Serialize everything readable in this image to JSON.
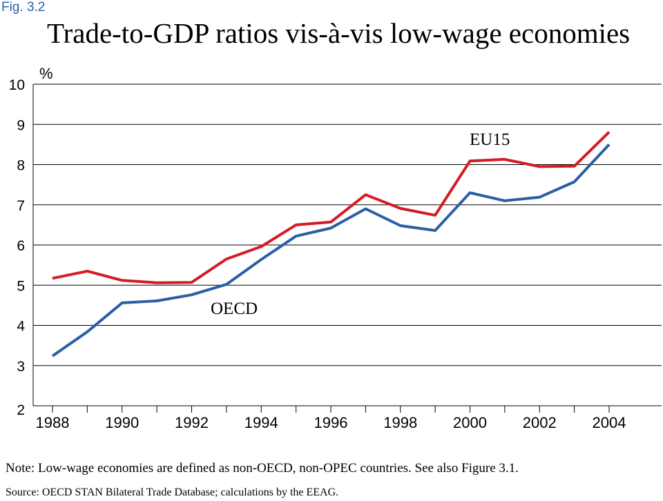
{
  "figure_label": "Fig. 3.2",
  "title": "Trade-to-GDP ratios vis-à-vis low-wage economies",
  "note": "Note: Low-wage economies are defined as non-OECD, non-OPEC countries. See also Figure 3.1.",
  "source": "Source: OECD STAN Bilateral Trade Database; calculations by the EEAG.",
  "colors": {
    "EU15": "#d51b23",
    "OECD": "#2c5ea5",
    "grid": "#000000"
  },
  "chart_data": {
    "type": "line",
    "title": "Trade-to-GDP ratios vis-à-vis low-wage economies",
    "ylabel": "%",
    "xlabel": "",
    "ylim": [
      2,
      10
    ],
    "yticks": [
      "2",
      "3",
      "4",
      "5",
      "6",
      "7",
      "8",
      "9",
      "10"
    ],
    "xticklabels": [
      "1988",
      "1990",
      "1992",
      "1994",
      "1996",
      "1998",
      "2000",
      "2002",
      "2004"
    ],
    "x": [
      1988,
      1989,
      1990,
      1991,
      1992,
      1993,
      1994,
      1995,
      1996,
      1997,
      1998,
      1999,
      2000,
      2001,
      2002,
      2003,
      2004
    ],
    "series": [
      {
        "name": "EU15",
        "color": "#d51b23",
        "values": [
          5.17,
          5.35,
          5.12,
          5.06,
          5.07,
          5.65,
          5.96,
          6.5,
          6.57,
          7.25,
          6.91,
          6.74,
          8.09,
          8.13,
          7.95,
          7.96,
          8.81
        ]
      },
      {
        "name": "OECD",
        "color": "#2c5ea5",
        "values": [
          3.24,
          3.84,
          4.56,
          4.61,
          4.76,
          5.02,
          5.64,
          6.22,
          6.42,
          6.9,
          6.48,
          6.36,
          7.3,
          7.1,
          7.19,
          7.57,
          8.5
        ]
      }
    ],
    "grid": true,
    "legend": "inline labels"
  }
}
